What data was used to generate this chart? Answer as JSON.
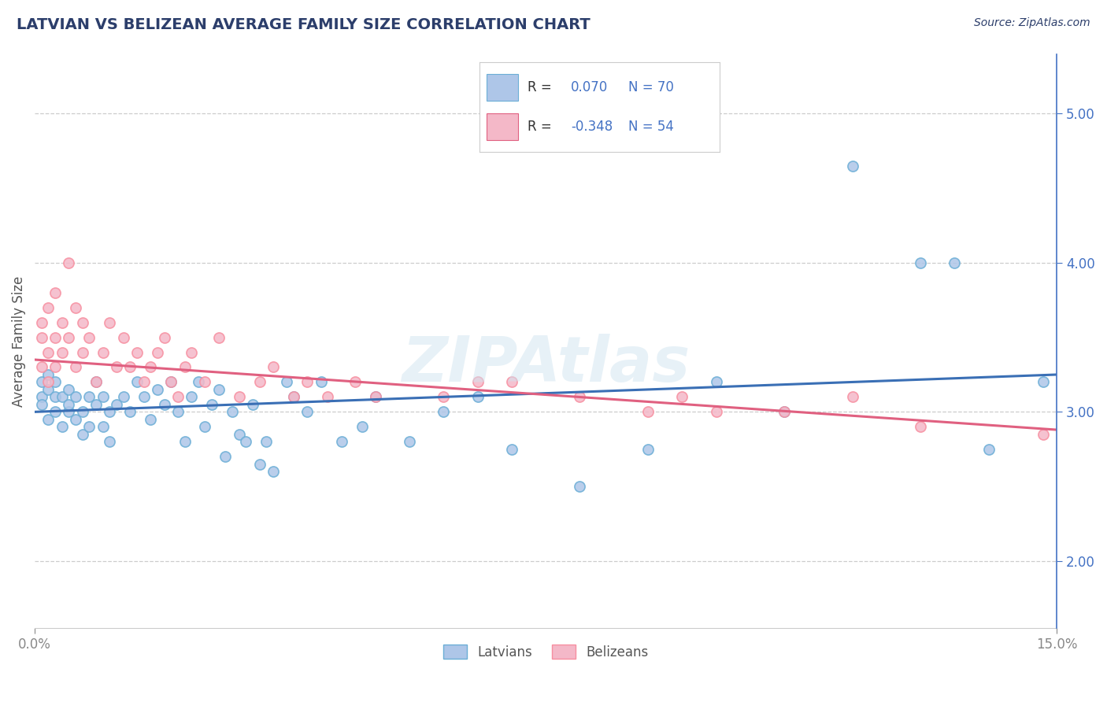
{
  "title": "LATVIAN VS BELIZEAN AVERAGE FAMILY SIZE CORRELATION CHART",
  "source": "Source: ZipAtlas.com",
  "ylabel": "Average Family Size",
  "right_yticks": [
    2.0,
    3.0,
    4.0,
    5.0
  ],
  "xmin": 0.0,
  "xmax": 0.15,
  "ymin": 1.55,
  "ymax": 5.4,
  "latvian_R": 0.07,
  "latvian_N": 70,
  "belizean_R": -0.348,
  "belizean_N": 54,
  "latvian_color": "#aec6e8",
  "belizean_color": "#f4b8c8",
  "latvian_edge_color": "#6baed6",
  "belizean_edge_color": "#f78fa0",
  "latvian_line_color": "#3a6fb5",
  "belizean_line_color": "#e06080",
  "legend_box_latvian": "#aec6e8",
  "legend_box_belizean": "#f4b8c8",
  "legend_border_latvian": "#6baed6",
  "legend_border_belizean": "#e06080",
  "title_color": "#2c3e6b",
  "source_color": "#2c3e6b",
  "grid_color": "#cccccc",
  "tick_color": "#888888",
  "right_tick_color": "#4472c4",
  "latvian_x": [
    0.001,
    0.001,
    0.001,
    0.002,
    0.002,
    0.002,
    0.003,
    0.003,
    0.003,
    0.004,
    0.004,
    0.005,
    0.005,
    0.005,
    0.006,
    0.006,
    0.007,
    0.007,
    0.008,
    0.008,
    0.009,
    0.009,
    0.01,
    0.01,
    0.011,
    0.011,
    0.012,
    0.013,
    0.014,
    0.015,
    0.016,
    0.017,
    0.018,
    0.019,
    0.02,
    0.021,
    0.022,
    0.023,
    0.024,
    0.025,
    0.026,
    0.027,
    0.028,
    0.029,
    0.03,
    0.031,
    0.032,
    0.033,
    0.034,
    0.035,
    0.037,
    0.038,
    0.04,
    0.042,
    0.045,
    0.048,
    0.05,
    0.055,
    0.06,
    0.065,
    0.07,
    0.08,
    0.09,
    0.1,
    0.11,
    0.12,
    0.13,
    0.135,
    0.14,
    0.148
  ],
  "latvian_y": [
    3.1,
    3.2,
    3.05,
    3.15,
    2.95,
    3.25,
    3.0,
    3.1,
    3.2,
    2.9,
    3.1,
    3.0,
    3.15,
    3.05,
    2.95,
    3.1,
    3.0,
    2.85,
    3.1,
    2.9,
    3.05,
    3.2,
    2.9,
    3.1,
    3.0,
    2.8,
    3.05,
    3.1,
    3.0,
    3.2,
    3.1,
    2.95,
    3.15,
    3.05,
    3.2,
    3.0,
    2.8,
    3.1,
    3.2,
    2.9,
    3.05,
    3.15,
    2.7,
    3.0,
    2.85,
    2.8,
    3.05,
    2.65,
    2.8,
    2.6,
    3.2,
    3.1,
    3.0,
    3.2,
    2.8,
    2.9,
    3.1,
    2.8,
    3.0,
    3.1,
    2.75,
    2.5,
    2.75,
    3.2,
    3.0,
    4.65,
    4.0,
    4.0,
    2.75,
    3.2
  ],
  "belizean_x": [
    0.001,
    0.001,
    0.001,
    0.002,
    0.002,
    0.002,
    0.003,
    0.003,
    0.003,
    0.004,
    0.004,
    0.005,
    0.005,
    0.006,
    0.006,
    0.007,
    0.007,
    0.008,
    0.009,
    0.01,
    0.011,
    0.012,
    0.013,
    0.014,
    0.015,
    0.016,
    0.017,
    0.018,
    0.019,
    0.02,
    0.021,
    0.022,
    0.023,
    0.025,
    0.027,
    0.03,
    0.033,
    0.035,
    0.038,
    0.04,
    0.043,
    0.047,
    0.05,
    0.06,
    0.065,
    0.07,
    0.08,
    0.09,
    0.095,
    0.1,
    0.11,
    0.12,
    0.13,
    0.148
  ],
  "belizean_y": [
    3.5,
    3.3,
    3.6,
    3.4,
    3.7,
    3.2,
    3.8,
    3.5,
    3.3,
    3.6,
    3.4,
    4.0,
    3.5,
    3.7,
    3.3,
    3.6,
    3.4,
    3.5,
    3.2,
    3.4,
    3.6,
    3.3,
    3.5,
    3.3,
    3.4,
    3.2,
    3.3,
    3.4,
    3.5,
    3.2,
    3.1,
    3.3,
    3.4,
    3.2,
    3.5,
    3.1,
    3.2,
    3.3,
    3.1,
    3.2,
    3.1,
    3.2,
    3.1,
    3.1,
    3.2,
    3.2,
    3.1,
    3.0,
    3.1,
    3.0,
    3.0,
    3.1,
    2.9,
    2.85
  ]
}
